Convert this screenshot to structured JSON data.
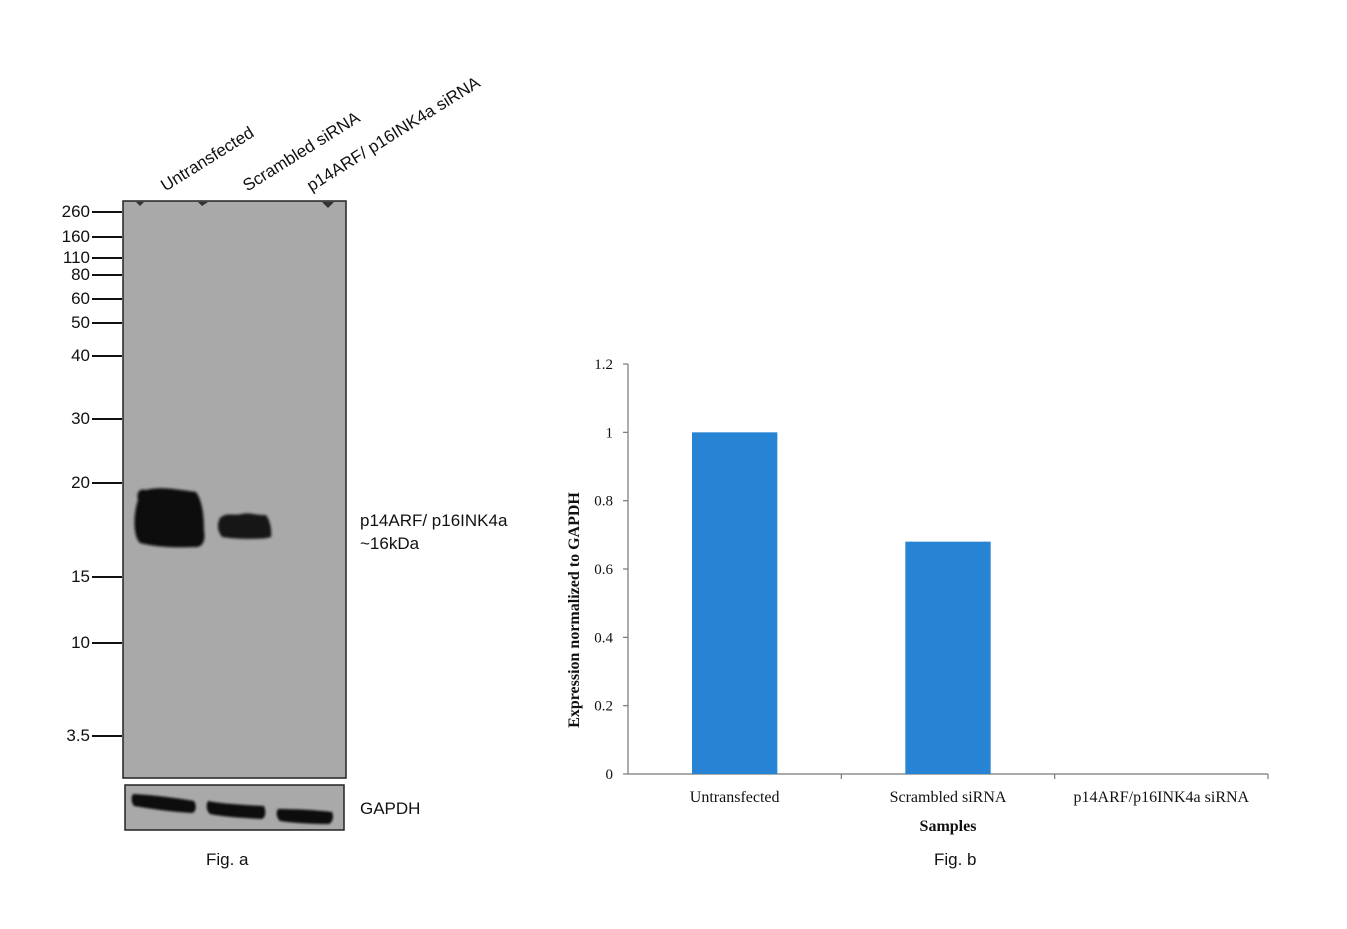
{
  "fig_a": {
    "lane_labels": [
      "Untransfected",
      "Scrambled siRNA",
      "p14ARF/ p16INK4a siRNA"
    ],
    "mw_markers": [
      "260",
      "160",
      "110",
      "80",
      "60",
      "50",
      "40",
      "30",
      "20",
      "15",
      "10",
      "3.5"
    ],
    "band_label_line1": "p14ARF/ p16INK4a",
    "band_label_line2": "~16kDa",
    "loading_control_label": "GAPDH",
    "caption": "Fig. a",
    "blot_background": "#a9a9a9",
    "band_color": "#0d0d0d"
  },
  "fig_b": {
    "caption": "Fig. b"
  },
  "chart_data": {
    "type": "bar",
    "categories": [
      "Untransfected",
      "Scrambled siRNA",
      "p14ARF/p16INK4a siRNA"
    ],
    "values": [
      1.0,
      0.68,
      0.0
    ],
    "xlabel": "Samples",
    "ylabel": "Expression normalized to GAPDH",
    "ylim": [
      0,
      1.2
    ],
    "yticks": [
      "0",
      "0.2",
      "0.4",
      "0.6",
      "0.8",
      "1",
      "1.2"
    ],
    "bar_color": "#2783d3",
    "grid": false,
    "legend": "none"
  }
}
